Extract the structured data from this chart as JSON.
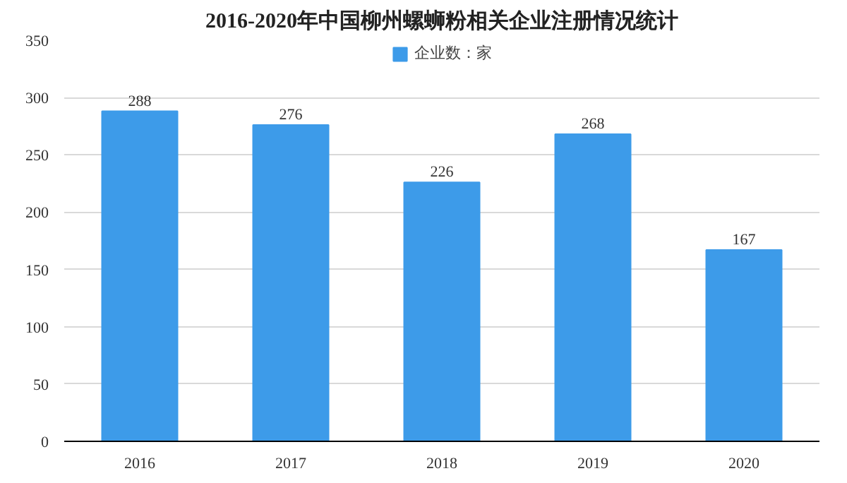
{
  "chart_data": {
    "type": "bar",
    "title": "2016-2020年中国柳州螺蛳粉相关企业注册情况统计",
    "categories": [
      "2016",
      "2017",
      "2018",
      "2019",
      "2020"
    ],
    "series": [
      {
        "name": "企业数：家",
        "color": "#3d9be9",
        "values": [
          288,
          276,
          226,
          268,
          167
        ]
      }
    ],
    "ylim": [
      0,
      350
    ],
    "yticks": [
      0,
      50,
      100,
      150,
      200,
      250,
      300,
      350
    ],
    "grid": "y",
    "legend": "top",
    "data_labels": true
  }
}
